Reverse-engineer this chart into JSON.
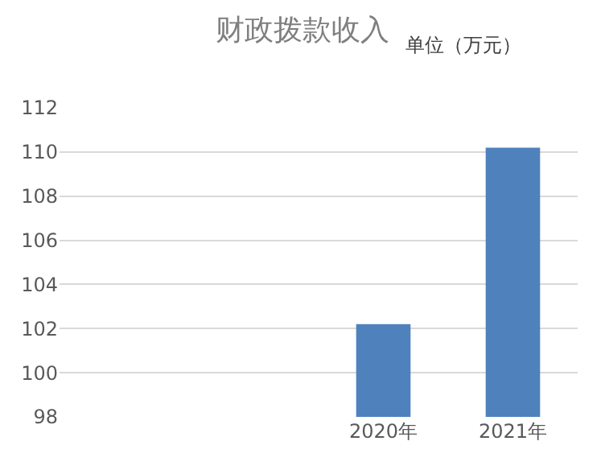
{
  "chart_data": {
    "type": "bar",
    "title": "财政拨款收入",
    "subtitle": "单位（万元）",
    "categories": [
      null,
      null,
      "2020年",
      "2021年"
    ],
    "values": [
      null,
      null,
      102.2,
      110.2
    ],
    "color": "#4f81bd",
    "ylim": [
      98,
      112
    ],
    "yticks": [
      98,
      100,
      102,
      104,
      106,
      108,
      110,
      112
    ],
    "grid": "y"
  }
}
